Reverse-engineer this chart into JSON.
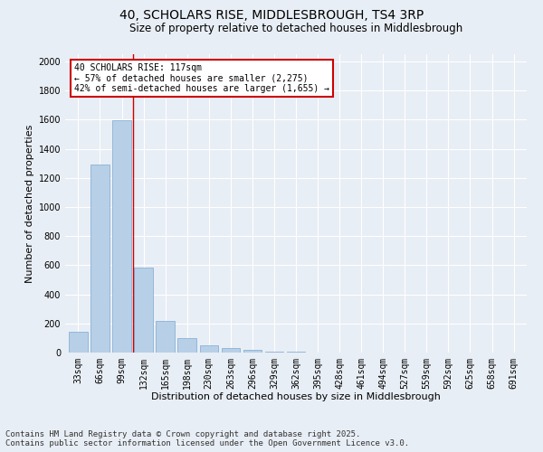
{
  "title1": "40, SCHOLARS RISE, MIDDLESBROUGH, TS4 3RP",
  "title2": "Size of property relative to detached houses in Middlesbrough",
  "xlabel": "Distribution of detached houses by size in Middlesbrough",
  "ylabel": "Number of detached properties",
  "categories": [
    "33sqm",
    "66sqm",
    "99sqm",
    "132sqm",
    "165sqm",
    "198sqm",
    "230sqm",
    "263sqm",
    "296sqm",
    "329sqm",
    "362sqm",
    "395sqm",
    "428sqm",
    "461sqm",
    "494sqm",
    "527sqm",
    "559sqm",
    "592sqm",
    "625sqm",
    "658sqm",
    "691sqm"
  ],
  "values": [
    145,
    1295,
    1595,
    585,
    215,
    100,
    50,
    28,
    18,
    8,
    5,
    0,
    0,
    0,
    0,
    0,
    0,
    0,
    0,
    0,
    0
  ],
  "bar_color": "#b8cfe8",
  "bar_edge_color": "#7aaad0",
  "vline_x": 2.5,
  "vline_color": "#cc0000",
  "annotation_text": "40 SCHOLARS RISE: 117sqm\n← 57% of detached houses are smaller (2,275)\n42% of semi-detached houses are larger (1,655) →",
  "annotation_box_color": "#ffffff",
  "annotation_box_edge": "#cc0000",
  "ylim": [
    0,
    2050
  ],
  "yticks": [
    0,
    200,
    400,
    600,
    800,
    1000,
    1200,
    1400,
    1600,
    1800,
    2000
  ],
  "background_color": "#e8eef5",
  "grid_color": "#ffffff",
  "footer_line1": "Contains HM Land Registry data © Crown copyright and database right 2025.",
  "footer_line2": "Contains public sector information licensed under the Open Government Licence v3.0.",
  "title1_fontsize": 10,
  "title2_fontsize": 8.5,
  "xlabel_fontsize": 8,
  "ylabel_fontsize": 8,
  "tick_fontsize": 7,
  "annotation_fontsize": 7,
  "footer_fontsize": 6.5
}
